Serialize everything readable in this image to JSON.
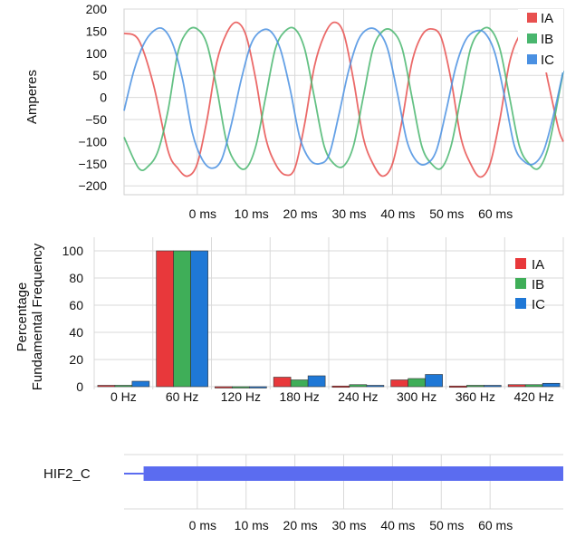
{
  "chart_data": [
    {
      "type": "line",
      "ylabel": "Amperes",
      "xlabel": "",
      "x_tick_labels": [
        "0 ms",
        "10 ms",
        "20 ms",
        "30 ms",
        "40 ms",
        "50 ms",
        "60 ms"
      ],
      "y_ticks": [
        200,
        150,
        100,
        50,
        0,
        -50,
        -100,
        -150,
        -200
      ],
      "ylim": [
        -220,
        200
      ],
      "xlim_ms": [
        -15,
        75
      ],
      "grid": true,
      "legend_position": "top-right",
      "series": [
        {
          "name": "IA",
          "color": "#e8504f",
          "values": [
            [
              -15,
              145
            ],
            [
              -12,
              130
            ],
            [
              -9,
              30
            ],
            [
              -6,
              -120
            ],
            [
              -4,
              -160
            ],
            [
              -2,
              -178
            ],
            [
              0,
              -150
            ],
            [
              2,
              -50
            ],
            [
              4,
              80
            ],
            [
              6,
              145
            ],
            [
              8,
              170
            ],
            [
              10,
              140
            ],
            [
              12,
              40
            ],
            [
              14,
              -90
            ],
            [
              16,
              -150
            ],
            [
              18,
              -175
            ],
            [
              20,
              -160
            ],
            [
              22,
              -60
            ],
            [
              24,
              70
            ],
            [
              26,
              140
            ],
            [
              28,
              170
            ],
            [
              30,
              145
            ],
            [
              32,
              40
            ],
            [
              34,
              -90
            ],
            [
              36,
              -150
            ],
            [
              38,
              -178
            ],
            [
              40,
              -150
            ],
            [
              42,
              -50
            ],
            [
              44,
              80
            ],
            [
              46,
              140
            ],
            [
              48,
              155
            ],
            [
              50,
              135
            ],
            [
              52,
              40
            ],
            [
              54,
              -90
            ],
            [
              56,
              -150
            ],
            [
              58,
              -180
            ],
            [
              60,
              -150
            ],
            [
              62,
              -50
            ],
            [
              64,
              80
            ],
            [
              66,
              140
            ],
            [
              68,
              160
            ],
            [
              70,
              130
            ],
            [
              72,
              30
            ],
            [
              74,
              -70
            ],
            [
              75,
              -100
            ]
          ]
        },
        {
          "name": "IB",
          "color": "#49b66e",
          "values": [
            [
              -15,
              -90
            ],
            [
              -12,
              -160
            ],
            [
              -10,
              -155
            ],
            [
              -8,
              -120
            ],
            [
              -6,
              -30
            ],
            [
              -4,
              100
            ],
            [
              -2,
              150
            ],
            [
              0,
              155
            ],
            [
              2,
              120
            ],
            [
              4,
              20
            ],
            [
              6,
              -100
            ],
            [
              8,
              -150
            ],
            [
              10,
              -160
            ],
            [
              12,
              -110
            ],
            [
              14,
              0
            ],
            [
              16,
              110
            ],
            [
              18,
              150
            ],
            [
              20,
              155
            ],
            [
              22,
              110
            ],
            [
              24,
              0
            ],
            [
              26,
              -110
            ],
            [
              28,
              -150
            ],
            [
              30,
              -155
            ],
            [
              32,
              -110
            ],
            [
              34,
              0
            ],
            [
              36,
              110
            ],
            [
              38,
              150
            ],
            [
              40,
              150
            ],
            [
              42,
              110
            ],
            [
              44,
              0
            ],
            [
              46,
              -110
            ],
            [
              48,
              -150
            ],
            [
              50,
              -160
            ],
            [
              52,
              -110
            ],
            [
              54,
              0
            ],
            [
              56,
              110
            ],
            [
              58,
              150
            ],
            [
              60,
              155
            ],
            [
              62,
              110
            ],
            [
              64,
              0
            ],
            [
              66,
              -110
            ],
            [
              68,
              -150
            ],
            [
              70,
              -160
            ],
            [
              72,
              -110
            ],
            [
              74,
              0
            ],
            [
              75,
              60
            ]
          ]
        },
        {
          "name": "IC",
          "color": "#4a90e2",
          "values": [
            [
              -15,
              -30
            ],
            [
              -13,
              60
            ],
            [
              -11,
              120
            ],
            [
              -9,
              150
            ],
            [
              -7,
              155
            ],
            [
              -5,
              120
            ],
            [
              -3,
              40
            ],
            [
              -1,
              -80
            ],
            [
              1,
              -140
            ],
            [
              3,
              -160
            ],
            [
              5,
              -140
            ],
            [
              7,
              -60
            ],
            [
              9,
              40
            ],
            [
              11,
              120
            ],
            [
              13,
              150
            ],
            [
              15,
              150
            ],
            [
              17,
              110
            ],
            [
              19,
              20
            ],
            [
              21,
              -90
            ],
            [
              23,
              -140
            ],
            [
              25,
              -150
            ],
            [
              27,
              -130
            ],
            [
              29,
              -40
            ],
            [
              31,
              60
            ],
            [
              33,
              130
            ],
            [
              35,
              155
            ],
            [
              37,
              150
            ],
            [
              39,
              110
            ],
            [
              41,
              10
            ],
            [
              43,
              -100
            ],
            [
              45,
              -145
            ],
            [
              47,
              -150
            ],
            [
              49,
              -120
            ],
            [
              51,
              -30
            ],
            [
              53,
              70
            ],
            [
              55,
              130
            ],
            [
              57,
              150
            ],
            [
              59,
              145
            ],
            [
              61,
              100
            ],
            [
              63,
              0
            ],
            [
              65,
              -110
            ],
            [
              67,
              -145
            ],
            [
              69,
              -150
            ],
            [
              71,
              -120
            ],
            [
              73,
              -40
            ],
            [
              75,
              60
            ]
          ]
        }
      ]
    },
    {
      "type": "bar",
      "ylabel": "Percentage Fundamental Frequency",
      "xlabel": "",
      "categories": [
        "0 Hz",
        "60 Hz",
        "120 Hz",
        "180 Hz",
        "240 Hz",
        "300 Hz",
        "360 Hz",
        "420 Hz"
      ],
      "y_ticks": [
        0,
        20,
        40,
        60,
        80,
        100
      ],
      "ylim": [
        -2,
        110
      ],
      "grid": true,
      "legend_position": "top-right",
      "series": [
        {
          "name": "IA",
          "color": "#e8383b",
          "values": [
            1,
            100,
            0,
            7,
            0.5,
            5,
            0.5,
            1.5
          ]
        },
        {
          "name": "IB",
          "color": "#3fae58",
          "values": [
            1,
            100,
            0,
            5,
            1.5,
            6,
            1,
            1.5
          ]
        },
        {
          "name": "IC",
          "color": "#1f78d6",
          "values": [
            4,
            100,
            0,
            8,
            1,
            9,
            1,
            2.5
          ]
        }
      ]
    },
    {
      "type": "digital",
      "series_label": "HIF2_C",
      "x_tick_labels": [
        "0 ms",
        "10 ms",
        "20 ms",
        "30 ms",
        "40 ms",
        "50 ms",
        "60 ms"
      ],
      "grid": true,
      "color": "#5b6cf0",
      "asserted_from_ms": -11,
      "xlim_ms": [
        -15,
        75
      ]
    }
  ]
}
